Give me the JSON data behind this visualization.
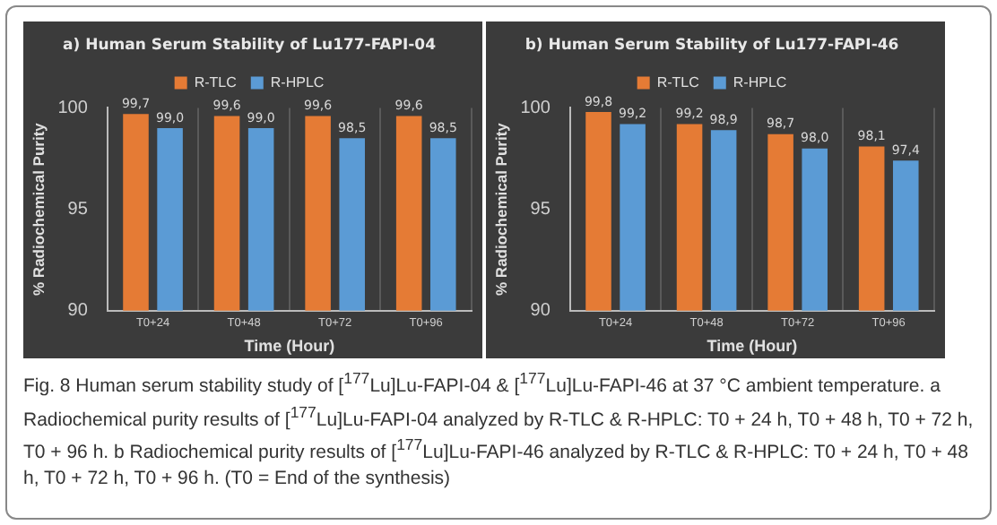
{
  "chart_data": [
    {
      "type": "bar",
      "title": "a) Human Serum Stability of Lu177-FAPI-04",
      "xlabel": "Time (Hour)",
      "ylabel": "% Radiochemical Purity",
      "categories": [
        "T0+24",
        "T0+48",
        "T0+72",
        "T0+96"
      ],
      "series": [
        {
          "name": "R-TLC",
          "color": "#e57b35",
          "values": [
            99.7,
            99.6,
            99.6,
            99.6
          ],
          "value_labels": [
            "99,7",
            "99,6",
            "99,6",
            "99,6"
          ]
        },
        {
          "name": "R-HPLC",
          "color": "#5b9bd5",
          "values": [
            99.0,
            99.0,
            98.5,
            98.5
          ],
          "value_labels": [
            "99,0",
            "99,0",
            "98,5",
            "98,5"
          ]
        }
      ],
      "ylim": [
        90,
        100
      ],
      "yticks": [
        90,
        95,
        100
      ],
      "grid": "x",
      "legend": "top"
    },
    {
      "type": "bar",
      "title": "b) Human Serum Stability of Lu177-FAPI-46",
      "xlabel": "Time (Hour)",
      "ylabel": "% Radiochemical Purity",
      "categories": [
        "T0+24",
        "T0+48",
        "T0+72",
        "T0+96"
      ],
      "series": [
        {
          "name": "R-TLC",
          "color": "#e57b35",
          "values": [
            99.8,
            99.2,
            98.7,
            98.1
          ],
          "value_labels": [
            "99,8",
            "99,2",
            "98,7",
            "98,1"
          ]
        },
        {
          "name": "R-HPLC",
          "color": "#5b9bd5",
          "values": [
            99.2,
            98.9,
            98.0,
            97.4
          ],
          "value_labels": [
            "99,2",
            "98,9",
            "98,0",
            "97,4"
          ]
        }
      ],
      "ylim": [
        90,
        100
      ],
      "yticks": [
        90,
        95,
        100
      ],
      "grid": "x",
      "legend": "top"
    },
    {
      "type": "other",
      "annotations": [
        "Fig. 8 Human serum stability study of [$^{177}$Lu]Lu-FAPI-04 & [$^{177}$Lu]Lu-FAPI-46 at 37 °C ambient temperature. a Radiochemical purity results of [$^{177}$Lu]Lu-FAPI-04 analyzed by R-TLC & R-HPLC: T0 + 24 h, T0 + 48 h, T0 + 72 h, T0 + 96 h. b Radiochemical purity results of [$^{177}$Lu]Lu-FAPI-46 analyzed by R-TLC & R-HPLC: T0 + 24 h, T0 + 48 h, T0 + 72 h, T0 + 96 h. (T0 = End of the synthesis)"
      ]
    }
  ]
}
